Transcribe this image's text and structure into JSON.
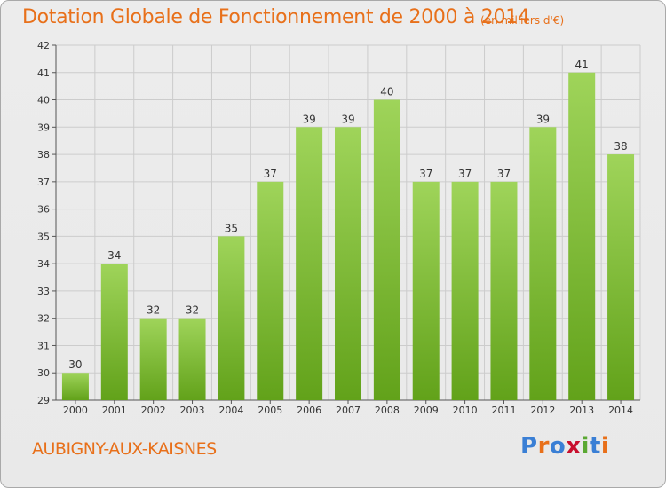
{
  "header": {
    "title": "Dotation Globale de Fonctionnement de 2000 à 2014",
    "unit": "(en milliers d'€)"
  },
  "footer": {
    "commune": "AUBIGNY-AUX-KAISNES",
    "logo_text": "Proxiti",
    "logo_colors": [
      "#3a7fd5",
      "#e8701a",
      "#3a7fd5",
      "#c8102e",
      "#5aa832",
      "#3a7fd5",
      "#e8701a"
    ]
  },
  "colors": {
    "bar_top": "#9fd45a",
    "bar_bottom": "#62a21a",
    "grid": "#cccccc",
    "title": "#e8701a"
  },
  "chart_data": {
    "type": "bar",
    "title": "Dotation Globale de Fonctionnement de 2000 à 2014",
    "subtitle": "(en milliers d'€)",
    "categories": [
      "2000",
      "2001",
      "2002",
      "2003",
      "2004",
      "2005",
      "2006",
      "2007",
      "2008",
      "2009",
      "2010",
      "2011",
      "2012",
      "2013",
      "2014"
    ],
    "values": [
      30,
      34,
      32,
      32,
      35,
      37,
      39,
      39,
      40,
      37,
      37,
      37,
      39,
      41,
      38
    ],
    "ylim": [
      29,
      42
    ],
    "yticks": [
      29,
      30,
      31,
      32,
      33,
      34,
      35,
      36,
      37,
      38,
      39,
      40,
      41,
      42
    ],
    "grid": true,
    "legend": "none"
  }
}
